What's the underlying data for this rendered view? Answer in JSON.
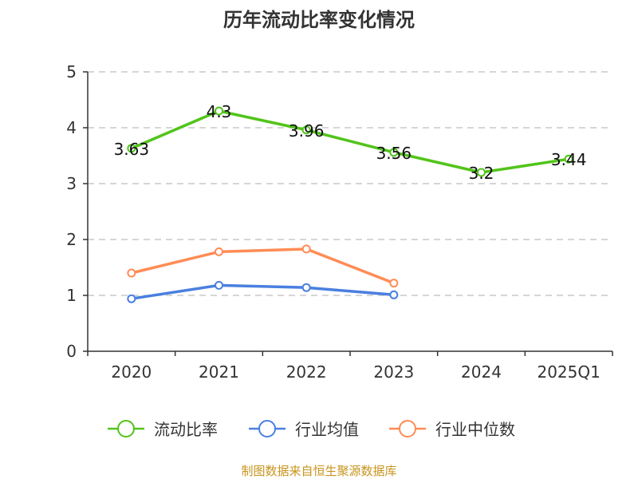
{
  "chart_data": {
    "type": "line",
    "title": "历年流动比率变化情况",
    "categories": [
      "2020",
      "2021",
      "2022",
      "2023",
      "2024",
      "2025Q1"
    ],
    "ylim": [
      0,
      5
    ],
    "yticks": [
      0,
      1,
      2,
      3,
      4,
      5
    ],
    "grid": true,
    "legend_position": "bottom",
    "series": [
      {
        "name": "流动比率",
        "color": "#52c41a",
        "values": [
          3.63,
          4.3,
          3.96,
          3.56,
          3.2,
          3.44
        ],
        "labels": [
          "3.63",
          "4.3",
          "3.96",
          "3.56",
          "3.2",
          "3.44"
        ]
      },
      {
        "name": "行业均值",
        "color": "#4a7fe0",
        "values": [
          0.94,
          1.18,
          1.14,
          1.01,
          null,
          null
        ]
      },
      {
        "name": "行业中位数",
        "color": "#ff8c55",
        "values": [
          1.4,
          1.78,
          1.83,
          1.22,
          null,
          null
        ]
      }
    ],
    "source": "制图数据来自恒生聚源数据库"
  }
}
